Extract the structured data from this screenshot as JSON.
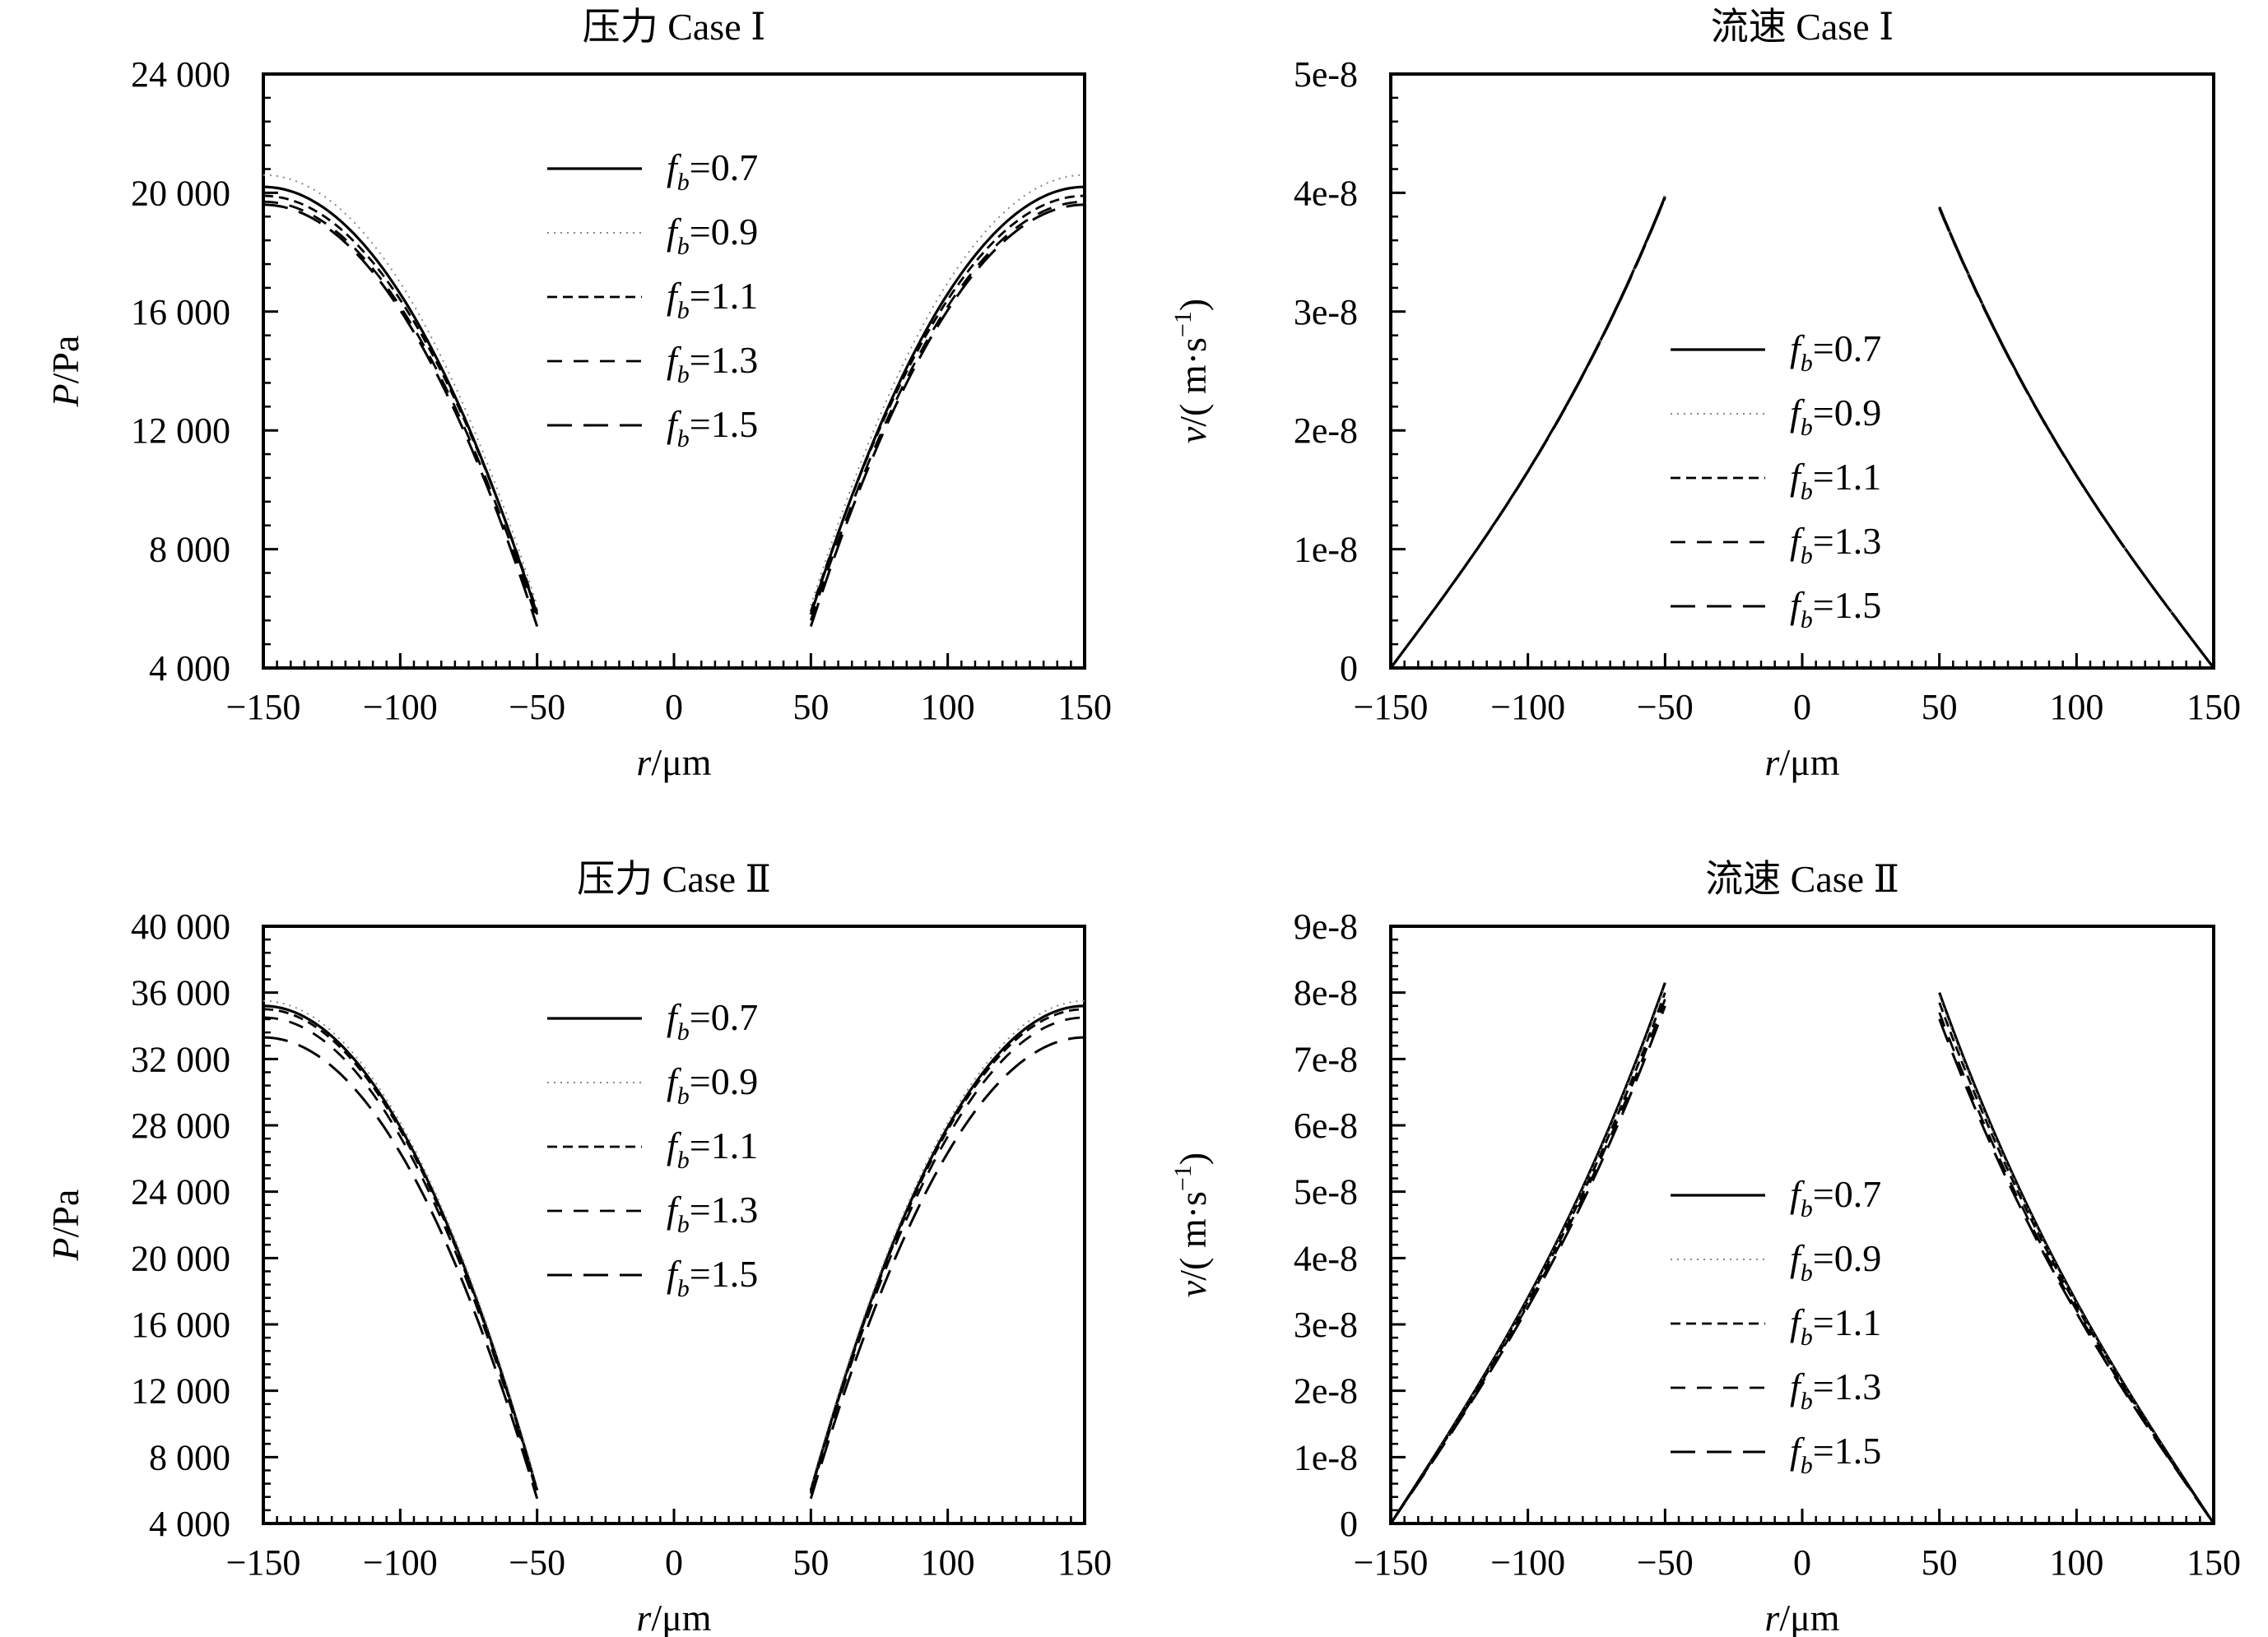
{
  "chart_data": [
    {
      "type": "line",
      "title": "压力 Case Ⅰ",
      "xlabel_var": "r",
      "xlabel_unit": "/μm",
      "ylabel_var": "P",
      "ylabel_unit": "/Pa",
      "xlim": [
        -150,
        150
      ],
      "ylim": [
        4000,
        24000
      ],
      "xticks": [
        -150,
        -100,
        -50,
        0,
        50,
        100,
        150
      ],
      "xtick_labels": [
        "−150",
        "−100",
        "−50",
        "0",
        "50",
        "100",
        "150"
      ],
      "yticks": [
        4000,
        8000,
        12000,
        16000,
        20000,
        24000
      ],
      "ytick_labels": [
        "4 000",
        "8 000",
        "12 000",
        "16 000",
        "20 000",
        "24 000"
      ],
      "legend_position": "top-center",
      "segments": [
        [
          -150,
          -50
        ],
        [
          50,
          150
        ]
      ],
      "curve": "parabolic",
      "series": [
        {
          "name": "fb=0.7",
          "label_base": "f",
          "label_sub": "b",
          "label_value": "=0.7",
          "style": "solid",
          "x": [
            -150,
            -50,
            50,
            150
          ],
          "y": [
            20200,
            5800,
            5800,
            20200
          ]
        },
        {
          "name": "fb=0.9",
          "label_base": "f",
          "label_sub": "b",
          "label_value": "=0.9",
          "style": "dotted",
          "x": [
            -150,
            -50,
            50,
            150
          ],
          "y": [
            20600,
            6100,
            6100,
            20600
          ]
        },
        {
          "name": "fb=1.1",
          "label_base": "f",
          "label_sub": "b",
          "label_value": "=1.1",
          "style": "short-dash",
          "x": [
            -150,
            -50,
            50,
            150
          ],
          "y": [
            19900,
            5900,
            5900,
            19900
          ]
        },
        {
          "name": "fb=1.3",
          "label_base": "f",
          "label_sub": "b",
          "label_value": "=1.3",
          "style": "dash",
          "x": [
            -150,
            -50,
            50,
            150
          ],
          "y": [
            19700,
            5600,
            5600,
            19700
          ]
        },
        {
          "name": "fb=1.5",
          "label_base": "f",
          "label_sub": "b",
          "label_value": "=1.5",
          "style": "long-dash",
          "x": [
            -150,
            -50,
            50,
            150
          ],
          "y": [
            19600,
            5400,
            5400,
            19600
          ]
        }
      ]
    },
    {
      "type": "line",
      "title": "流速 Case Ⅰ",
      "xlabel_var": "r",
      "xlabel_unit": "/μm",
      "ylabel_var": "v",
      "ylabel_unit": "/( m·s",
      "ylabel_sup": "−1",
      "ylabel_close": ")",
      "xlim": [
        -150,
        150
      ],
      "ylim": [
        0,
        5e-08
      ],
      "xticks": [
        -150,
        -100,
        -50,
        0,
        50,
        100,
        150
      ],
      "xtick_labels": [
        "−150",
        "−100",
        "−50",
        "0",
        "50",
        "100",
        "150"
      ],
      "yticks": [
        0,
        1e-08,
        2e-08,
        3e-08,
        4e-08,
        5e-08
      ],
      "ytick_labels": [
        "0",
        "1e-8",
        "2e-8",
        "3e-8",
        "4e-8",
        "5e-8"
      ],
      "legend_position": "center",
      "segments": [
        [
          -150,
          -50
        ],
        [
          50,
          150
        ]
      ],
      "curve": "power",
      "series": [
        {
          "name": "fb=0.7",
          "label_base": "f",
          "label_sub": "b",
          "label_value": "=0.7",
          "style": "solid",
          "x": [
            -150,
            -50,
            50,
            150
          ],
          "y": [
            0,
            3.97e-08,
            3.88e-08,
            0
          ]
        },
        {
          "name": "fb=0.9",
          "label_base": "f",
          "label_sub": "b",
          "label_value": "=0.9",
          "style": "dotted",
          "x": [
            -150,
            -50,
            50,
            150
          ],
          "y": [
            0,
            3.97e-08,
            3.88e-08,
            0
          ]
        },
        {
          "name": "fb=1.1",
          "label_base": "f",
          "label_sub": "b",
          "label_value": "=1.1",
          "style": "short-dash",
          "x": [
            -150,
            -50,
            50,
            150
          ],
          "y": [
            0,
            3.97e-08,
            3.88e-08,
            0
          ]
        },
        {
          "name": "fb=1.3",
          "label_base": "f",
          "label_sub": "b",
          "label_value": "=1.3",
          "style": "dash",
          "x": [
            -150,
            -50,
            50,
            150
          ],
          "y": [
            0,
            3.96e-08,
            3.87e-08,
            0
          ]
        },
        {
          "name": "fb=1.5",
          "label_base": "f",
          "label_sub": "b",
          "label_value": "=1.5",
          "style": "long-dash",
          "x": [
            -150,
            -50,
            50,
            150
          ],
          "y": [
            0,
            3.96e-08,
            3.87e-08,
            0
          ]
        }
      ]
    },
    {
      "type": "line",
      "title": "压力 Case Ⅱ",
      "xlabel_var": "r",
      "xlabel_unit": "/μm",
      "ylabel_var": "P",
      "ylabel_unit": "/Pa",
      "xlim": [
        -150,
        150
      ],
      "ylim": [
        4000,
        40000
      ],
      "xticks": [
        -150,
        -100,
        -50,
        0,
        50,
        100,
        150
      ],
      "xtick_labels": [
        "−150",
        "−100",
        "−50",
        "0",
        "50",
        "100",
        "150"
      ],
      "yticks": [
        4000,
        8000,
        12000,
        16000,
        20000,
        24000,
        28000,
        32000,
        36000,
        40000
      ],
      "ytick_labels": [
        "4 000",
        "8 000",
        "12 000",
        "16 000",
        "20 000",
        "24 000",
        "28 000",
        "32 000",
        "36 000",
        "40 000"
      ],
      "legend_position": "top-center",
      "segments": [
        [
          -150,
          -50
        ],
        [
          50,
          150
        ]
      ],
      "curve": "parabolic",
      "series": [
        {
          "name": "fb=0.7",
          "label_base": "f",
          "label_sub": "b",
          "label_value": "=0.7",
          "style": "solid",
          "x": [
            -150,
            -50,
            50,
            150
          ],
          "y": [
            35200,
            6000,
            6000,
            35200
          ]
        },
        {
          "name": "fb=0.9",
          "label_base": "f",
          "label_sub": "b",
          "label_value": "=0.9",
          "style": "dotted",
          "x": [
            -150,
            -50,
            50,
            150
          ],
          "y": [
            35500,
            6200,
            6200,
            35500
          ]
        },
        {
          "name": "fb=1.1",
          "label_base": "f",
          "label_sub": "b",
          "label_value": "=1.1",
          "style": "short-dash",
          "x": [
            -150,
            -50,
            50,
            150
          ],
          "y": [
            35000,
            5900,
            5900,
            35000
          ]
        },
        {
          "name": "fb=1.3",
          "label_base": "f",
          "label_sub": "b",
          "label_value": "=1.3",
          "style": "dash",
          "x": [
            -150,
            -50,
            50,
            150
          ],
          "y": [
            34500,
            5800,
            5800,
            34500
          ]
        },
        {
          "name": "fb=1.5",
          "label_base": "f",
          "label_sub": "b",
          "label_value": "=1.5",
          "style": "long-dash",
          "x": [
            -150,
            -50,
            50,
            150
          ],
          "y": [
            33300,
            5500,
            5500,
            33300
          ]
        }
      ]
    },
    {
      "type": "line",
      "title": "流速 Case Ⅱ",
      "xlabel_var": "r",
      "xlabel_unit": "/μm",
      "ylabel_var": "v",
      "ylabel_unit": "/( m·s",
      "ylabel_sup": "−1",
      "ylabel_close": ")",
      "xlim": [
        -150,
        150
      ],
      "ylim": [
        0,
        9e-08
      ],
      "xticks": [
        -150,
        -100,
        -50,
        0,
        50,
        100,
        150
      ],
      "xtick_labels": [
        "−150",
        "−100",
        "−50",
        "0",
        "50",
        "100",
        "150"
      ],
      "yticks": [
        0,
        1e-08,
        2e-08,
        3e-08,
        4e-08,
        5e-08,
        6e-08,
        7e-08,
        8e-08,
        9e-08
      ],
      "ytick_labels": [
        "0",
        "1e-8",
        "2e-8",
        "3e-8",
        "4e-8",
        "5e-8",
        "6e-8",
        "7e-8",
        "8e-8",
        "9e-8"
      ],
      "legend_position": "center",
      "segments": [
        [
          -150,
          -50
        ],
        [
          50,
          150
        ]
      ],
      "curve": "power",
      "series": [
        {
          "name": "fb=0.7",
          "label_base": "f",
          "label_sub": "b",
          "label_value": "=0.7",
          "style": "solid",
          "x": [
            -150,
            -50,
            50,
            150
          ],
          "y": [
            0,
            8.15e-08,
            8e-08,
            0
          ]
        },
        {
          "name": "fb=0.9",
          "label_base": "f",
          "label_sub": "b",
          "label_value": "=0.9",
          "style": "dotted",
          "x": [
            -150,
            -50,
            50,
            150
          ],
          "y": [
            0,
            8.1e-08,
            7.95e-08,
            0
          ]
        },
        {
          "name": "fb=1.1",
          "label_base": "f",
          "label_sub": "b",
          "label_value": "=1.1",
          "style": "short-dash",
          "x": [
            -150,
            -50,
            50,
            150
          ],
          "y": [
            0,
            8e-08,
            7.85e-08,
            0
          ]
        },
        {
          "name": "fb=1.3",
          "label_base": "f",
          "label_sub": "b",
          "label_value": "=1.3",
          "style": "dash",
          "x": [
            -150,
            -50,
            50,
            150
          ],
          "y": [
            0,
            7.9e-08,
            7.7e-08,
            0
          ]
        },
        {
          "name": "fb=1.5",
          "label_base": "f",
          "label_sub": "b",
          "label_value": "=1.5",
          "style": "long-dash",
          "x": [
            -150,
            -50,
            50,
            150
          ],
          "y": [
            0,
            7.8e-08,
            7.6e-08,
            0
          ]
        }
      ]
    }
  ]
}
